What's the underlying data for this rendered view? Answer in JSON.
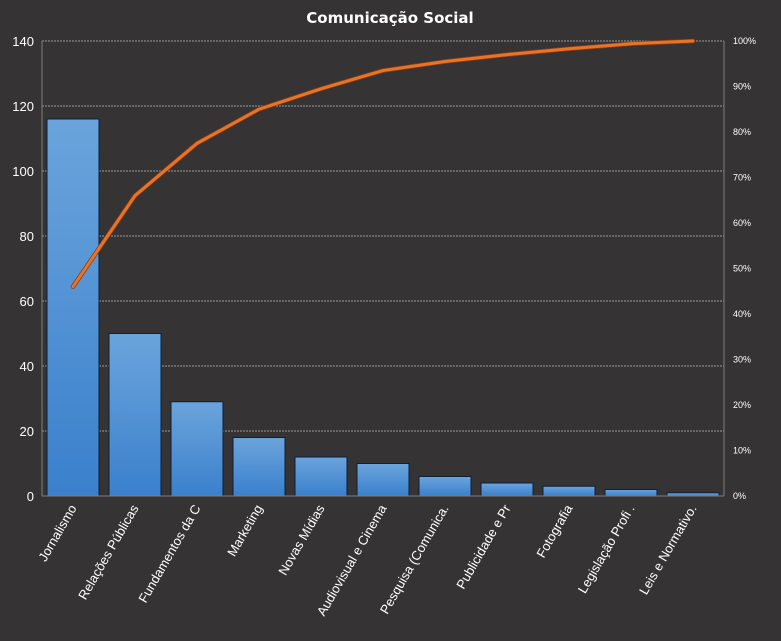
{
  "chart_data": {
    "type": "bar",
    "title": "Comunicação Social",
    "categories": [
      "Jornalismo",
      "Relações Públicas",
      "Fundamentos  da C",
      "Marketing",
      "Novas Mídias",
      "Audiovisual e Cinema",
      "Pesquisa (Comunica.",
      "Publicidade e Pr",
      "Fotografia",
      "Legislação Profi .",
      "Leis e Normativo."
    ],
    "series": [
      {
        "type": "bar",
        "values": [
          116,
          50,
          29,
          18,
          12,
          10,
          6,
          4,
          3,
          2,
          1
        ]
      },
      {
        "type": "line",
        "axis": "right",
        "values": [
          46,
          66,
          77.5,
          85,
          89.5,
          93.5,
          95.5,
          97,
          98.3,
          99.4,
          100
        ]
      }
    ],
    "ylim": [
      0,
      140
    ],
    "yticks": [
      0,
      20,
      40,
      60,
      80,
      100,
      120,
      140
    ],
    "y2lim": [
      0,
      100
    ],
    "y2ticks": [
      "0%",
      "10%",
      "20%",
      "30%",
      "40%",
      "50%",
      "60%",
      "70%",
      "80%",
      "90%",
      "100%"
    ],
    "grid": true,
    "legend": "none",
    "colors": {
      "background": "#353333",
      "bar_top": "#6ba4dc",
      "bar_bottom": "#3a80cc",
      "bar_stroke": "#0b1f3a",
      "line": "#e8742a",
      "grid": "#bfbfbf",
      "text": "#ffffff"
    }
  }
}
